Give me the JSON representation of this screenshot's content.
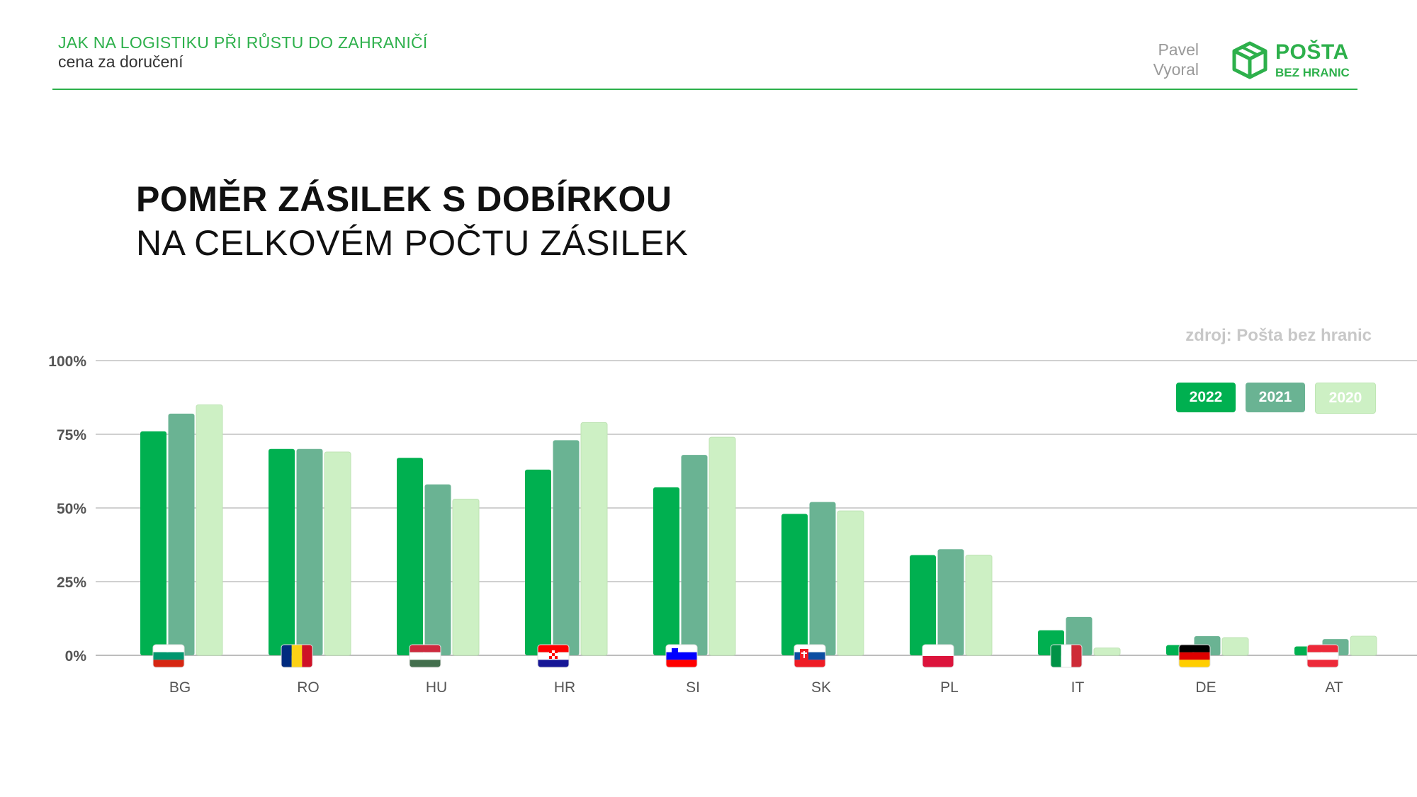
{
  "header": {
    "title": "JAK NA LOGISTIKU PŘI RŮSTU DO ZAHRANIČÍ",
    "subtitle": "cena za doručení",
    "author_first": "Pavel",
    "author_last": "Vyoral",
    "logo_name": "POŠTA",
    "logo_tagline": "BEZ HRANIC",
    "logo_icon": "box-icon"
  },
  "colors": {
    "accent": "#2db04b",
    "s2022": "#00b050",
    "s2021": "#6ab393",
    "s2020": "#cdf0c4",
    "grid": "#d0d0d0",
    "text": "#555555"
  },
  "chart_data": {
    "type": "bar",
    "title": "POMĚR ZÁSILEK S DOBÍRKOU",
    "subtitle": "NA CELKOVÉM POČTU ZÁSILEK",
    "source": "zdroj: Pošta bez hranic",
    "categories": [
      "BG",
      "RO",
      "HU",
      "HR",
      "SI",
      "SK",
      "PL",
      "IT",
      "DE",
      "AT"
    ],
    "flags": [
      "bg",
      "ro",
      "hu",
      "hr",
      "si",
      "sk",
      "pl",
      "it",
      "de",
      "at"
    ],
    "series": [
      {
        "name": "2022",
        "values": [
          76,
          70,
          67,
          63,
          57,
          48,
          34,
          8.5,
          3.5,
          3
        ]
      },
      {
        "name": "2021",
        "values": [
          82,
          70,
          58,
          73,
          68,
          52,
          36,
          13,
          6.5,
          5.5
        ]
      },
      {
        "name": "2020",
        "values": [
          85,
          69,
          53,
          79,
          74,
          49,
          34,
          2.5,
          6,
          6.5
        ]
      }
    ],
    "ylim": [
      0,
      100
    ],
    "yticks": [
      "0%",
      "25%",
      "50%",
      "75%",
      "100%"
    ],
    "ytick_values": [
      0,
      25,
      50,
      75,
      100
    ],
    "legend_position": "top-right",
    "grid": true
  }
}
